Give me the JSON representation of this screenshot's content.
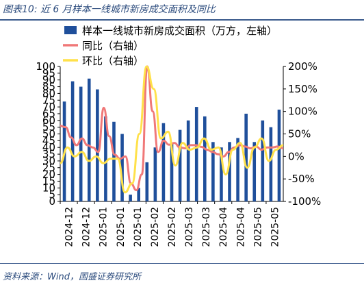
{
  "figure_title": "图表10:  近 6 月样本一线城市新房成交面积及同比",
  "source": "资料来源：Wind，国盛证券研究所",
  "colors": {
    "bar": "#1f4f9b",
    "yoy": "#f07878",
    "mom": "#ffe14a",
    "text": "#2a4a7c"
  },
  "chart_data": {
    "type": "bar",
    "legend_position": "top-left",
    "grid": false,
    "left_axis": {
      "min": 0,
      "max": 100,
      "ticks": [
        "0",
        "5",
        "10",
        "15",
        "20",
        "25",
        "30",
        "35",
        "40",
        "45",
        "50",
        "55",
        "60",
        "65",
        "70",
        "75",
        "80",
        "85",
        "90",
        "95",
        "100"
      ]
    },
    "right_axis": {
      "min": -100,
      "max": 200,
      "ticks": [
        "-100%",
        "-50%",
        "0%",
        "50%",
        "100%",
        "150%",
        "200%"
      ]
    },
    "x_ticks": [
      "2024-12",
      "2024-12",
      "2025-01",
      "2025-01",
      "2025-01",
      "2025-02",
      "2025-02",
      "2025-03",
      "2025-03",
      "2025-04",
      "2025-04",
      "2025-05",
      "2025-05"
    ],
    "series": [
      {
        "name": "样本一线城市新房成交面积（万方，左轴）",
        "type": "bar",
        "axis": "left",
        "values": [
          74,
          89,
          85,
          91,
          83,
          63,
          59,
          50,
          5,
          10,
          29,
          40,
          58,
          43,
          53,
          60,
          70,
          63,
          44,
          40,
          44,
          47,
          65,
          44,
          60,
          55,
          68
        ]
      },
      {
        "name": "同比（右轴）",
        "type": "line",
        "axis": "right",
        "values": [
          68,
          65,
          42,
          25,
          40,
          25,
          20,
          10,
          108,
          45,
          4,
          -5,
          0,
          -60,
          -75,
          -40,
          200,
          100,
          10,
          35,
          26,
          30,
          20,
          18,
          25,
          25,
          21,
          15,
          10,
          5,
          0,
          10,
          20,
          25,
          22,
          18,
          22,
          15,
          20,
          20,
          22,
          18
        ]
      },
      {
        "name": "环比（右轴）",
        "type": "line",
        "axis": "right",
        "values": [
          -15,
          20,
          0,
          10,
          -10,
          0,
          -15,
          -5,
          -5,
          -80,
          -60,
          50,
          200,
          150,
          40,
          55,
          -20,
          30,
          15,
          20,
          40,
          15,
          20,
          -40,
          15,
          30,
          -25,
          20,
          40,
          -10,
          15,
          25
        ]
      }
    ]
  }
}
